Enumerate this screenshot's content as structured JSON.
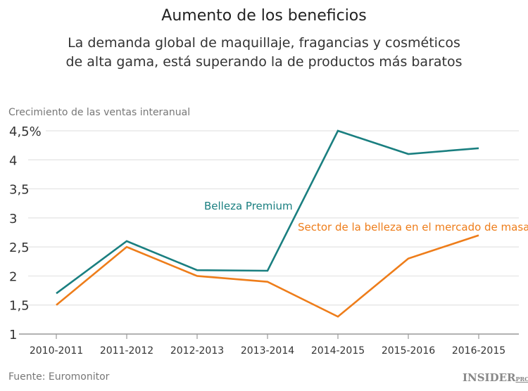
{
  "title": "Aumento de los beneficios",
  "subtitle_line1": "La demanda global de maquillaje, fragancias y cosméticos",
  "subtitle_line2": "de alta gama, está superando la de productos más baratos",
  "source": "Fuente: Euromonitor",
  "logo": {
    "main": "INSIDER",
    "suffix": "PRO"
  },
  "chart_data": {
    "type": "line",
    "ylabel": "Crecimiento de las ventas interanual",
    "categories": [
      "2010-2011",
      "2011-2012",
      "2012-2013",
      "2013-2014",
      "2014-2015",
      "2015-2016",
      "2016-2015"
    ],
    "ylim": [
      1,
      4.5
    ],
    "yticks": [
      1,
      1.5,
      2,
      2.5,
      3,
      3.5,
      4,
      4.5
    ],
    "ytick_labels": [
      "1",
      "1,5",
      "2",
      "2,5",
      "3",
      "3,5",
      "4",
      "4,5%"
    ],
    "grid": true,
    "series": [
      {
        "name": "Belleza Premium",
        "color": "#1a7f80",
        "values": [
          1.7,
          2.6,
          2.1,
          2.09,
          4.5,
          4.1,
          4.2
        ]
      },
      {
        "name": "Sector de la belleza en el mercado de masas",
        "color": "#ee7d1a",
        "values": [
          1.5,
          2.5,
          2.0,
          1.9,
          1.3,
          2.3,
          2.7
        ]
      }
    ]
  }
}
